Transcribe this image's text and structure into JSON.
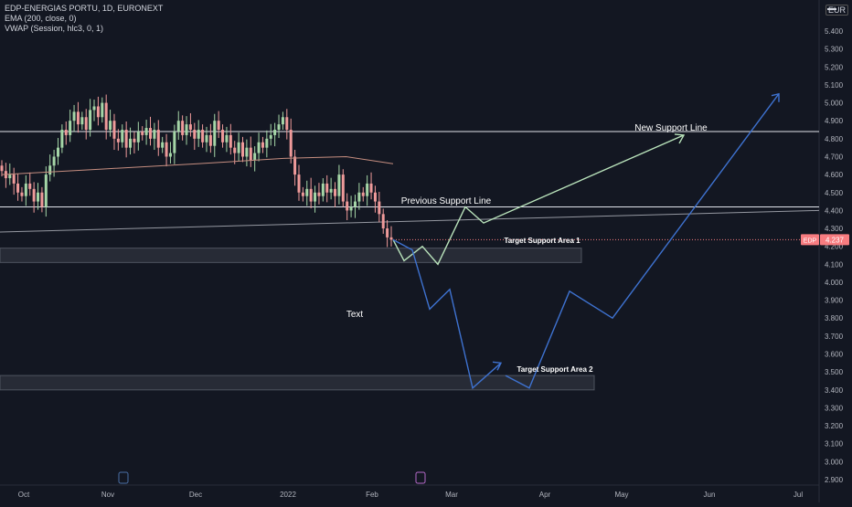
{
  "legend": {
    "symbol": "EDP-ENERGIAS PORTU, 1D, EURONEXT",
    "ema": "EMA (200, close, 0)",
    "vwap": "VWAP (Session, hlc3, 0, 1)"
  },
  "currency": "EUR",
  "price_tag": {
    "symbol": "EDP",
    "price": "4.237"
  },
  "annotations": {
    "new_support": "New Support Line",
    "previous_support": "Previous Support Line",
    "target1": "Target Support Area 1",
    "target2": "Target Support Area 2",
    "text": "Text"
  },
  "colors": {
    "background": "#131722",
    "up": "#a5d6a7",
    "down": "#ef9a9a",
    "ema": "#c68e80",
    "path_green": "#b9e3bb",
    "path_blue": "#3e72d0",
    "price_tag": "#f77c80"
  },
  "chart_data": {
    "type": "candlestick",
    "y_axis": {
      "range": [
        2.87,
        5.58
      ],
      "ticks": [
        "5.400",
        "5.300",
        "5.200",
        "5.100",
        "5.000",
        "4.900",
        "4.800",
        "4.700",
        "4.600",
        "4.500",
        "4.400",
        "4.300",
        "4.200",
        "4.100",
        "4.000",
        "3.900",
        "3.800",
        "3.700",
        "3.600",
        "3.500",
        "3.400",
        "3.300",
        "3.200",
        "3.100",
        "3.000",
        "2.900"
      ]
    },
    "x_axis": {
      "labels": [
        "Oct",
        "Nov",
        "Dec",
        "2022",
        "Feb",
        "Mar",
        "Apr",
        "May",
        "Jun",
        "Jul"
      ]
    },
    "last_price": 4.237,
    "horizontal_lines": [
      4.84,
      4.42
    ],
    "sloped_line": {
      "start": [
        "Sep 2021",
        4.28
      ],
      "end": [
        "Jul 2022",
        4.4
      ]
    },
    "target_zones": [
      {
        "name": "Target Support Area 1",
        "top": 4.19,
        "bottom": 4.11
      },
      {
        "name": "Target Support Area 2",
        "top": 3.48,
        "bottom": 3.4
      }
    ],
    "ohlc_close_path": [
      4.62,
      4.58,
      4.6,
      4.55,
      4.5,
      4.48,
      4.55,
      4.52,
      4.45,
      4.5,
      4.42,
      4.6,
      4.65,
      4.7,
      4.75,
      4.85,
      4.82,
      4.9,
      4.95,
      4.88,
      4.92,
      4.85,
      4.96,
      4.98,
      4.92,
      5.0,
      4.85,
      4.9,
      4.8,
      4.78,
      4.85,
      4.75,
      4.8,
      4.78,
      4.84,
      4.82,
      4.86,
      4.8,
      4.85,
      4.75,
      4.78,
      4.7,
      4.72,
      4.84,
      4.9,
      4.82,
      4.88,
      4.85,
      4.8,
      4.85,
      4.78,
      4.82,
      4.76,
      4.9,
      4.85,
      4.78,
      4.82,
      4.75,
      4.72,
      4.78,
      4.7,
      4.75,
      4.68,
      4.72,
      4.78,
      4.75,
      4.8,
      4.82,
      4.85,
      4.88,
      4.92,
      4.85,
      4.7,
      4.6,
      4.5,
      4.48,
      4.52,
      4.45,
      4.5,
      4.48,
      4.55,
      4.5,
      4.52,
      4.48,
      4.6,
      4.45,
      4.4,
      4.42,
      4.45,
      4.5,
      4.48,
      4.55,
      4.5,
      4.45,
      4.38,
      4.3,
      4.25,
      4.237
    ],
    "ema_points": [
      [
        4.6,
        0
      ],
      [
        4.63,
        0.25
      ],
      [
        4.66,
        0.5
      ],
      [
        4.69,
        0.72
      ],
      [
        4.7,
        0.88
      ],
      [
        4.66,
        1
      ]
    ],
    "projection_green": [
      4.237,
      4.12,
      4.2,
      4.1,
      4.42,
      4.33,
      4.82
    ],
    "projection_blue": [
      4.237,
      4.18,
      3.85,
      3.96,
      3.41,
      3.55,
      3.48,
      3.41,
      3.95,
      3.8,
      5.05
    ]
  }
}
